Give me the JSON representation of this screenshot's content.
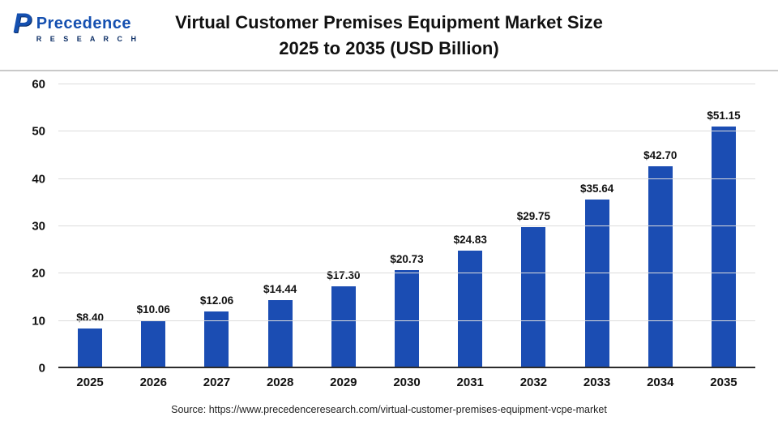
{
  "header": {
    "logo_name": "Precedence",
    "logo_sub": "R E S E A R C H",
    "logo_mark": "P",
    "title_line1": "Virtual Customer Premises Equipment Market Size",
    "title_line2": "2025 to 2035 (USD Billion)"
  },
  "chart_data": {
    "type": "bar",
    "title": "Virtual Customer Premises Equipment Market Size 2025 to 2035 (USD Billion)",
    "categories": [
      "2025",
      "2026",
      "2027",
      "2028",
      "2029",
      "2030",
      "2031",
      "2032",
      "2033",
      "2034",
      "2035"
    ],
    "values": [
      8.4,
      10.06,
      12.06,
      14.44,
      17.3,
      20.73,
      24.83,
      29.75,
      35.64,
      42.7,
      51.15
    ],
    "value_labels": [
      "$8.40",
      "$10.06",
      "$12.06",
      "$14.44",
      "$17.30",
      "$20.73",
      "$24.83",
      "$29.75",
      "$35.64",
      "$42.70",
      "$51.15"
    ],
    "xlabel": "",
    "ylabel": "",
    "ylim": [
      0,
      60
    ],
    "ytick_step": 10,
    "grid": "horizontal",
    "legend": "none",
    "bar_color": "#1b4db3",
    "unit": "USD Billion"
  },
  "footer": {
    "source": "Source: https://www.precedenceresearch.com/virtual-customer-premises-equipment-vcpe-market"
  }
}
